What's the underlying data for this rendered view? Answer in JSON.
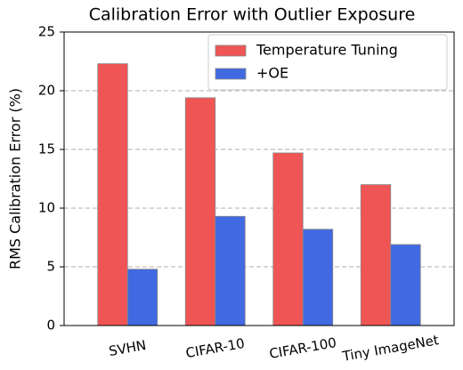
{
  "chart_data": {
    "type": "bar",
    "title": "Calibration Error with Outlier Exposure",
    "y_label": "RMS Calibration Error (%)",
    "categories": [
      "SVHN",
      "CIFAR-10",
      "CIFAR-100",
      "Tiny ImageNet"
    ],
    "series": [
      {
        "name": "Temperature Tuning",
        "color": "#f05555",
        "values": [
          22.3,
          19.4,
          14.7,
          12.0
        ]
      },
      {
        "name": "+OE",
        "color": "#4169e1",
        "values": [
          4.8,
          9.3,
          8.2,
          6.9
        ]
      }
    ],
    "ylim": [
      0,
      25
    ],
    "yticks": [
      0,
      5,
      10,
      15,
      20,
      25
    ],
    "grid": true,
    "legend": "upper right"
  }
}
